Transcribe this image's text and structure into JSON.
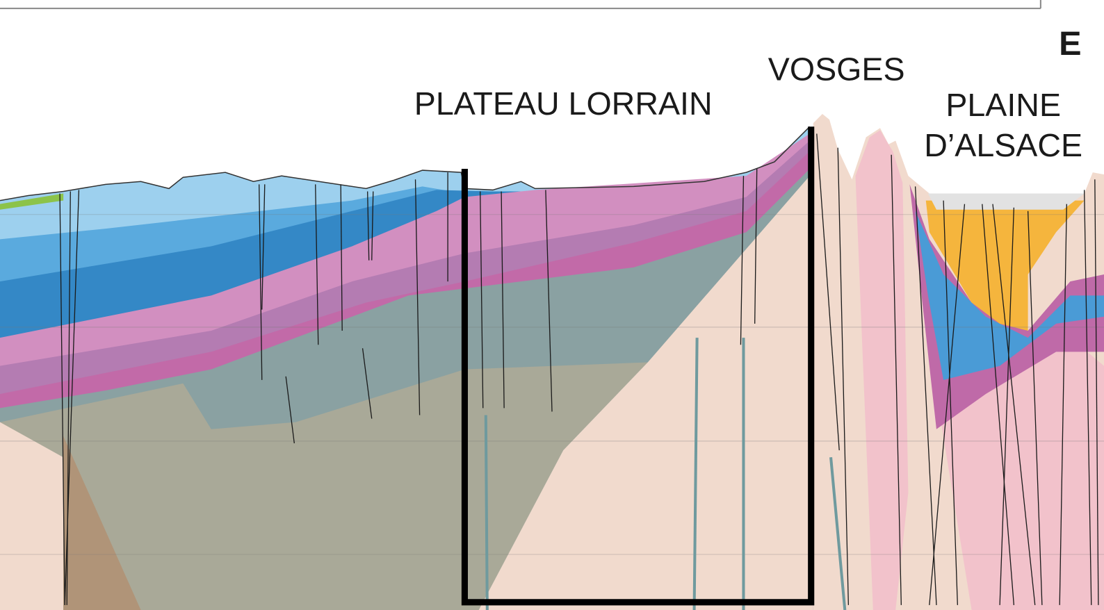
{
  "labels": {
    "corner": "E",
    "plateau": "PLATEAU LORRAIN",
    "vosges": "VOSGES",
    "plaine": [
      "PLAINE",
      "D’ALSACE"
    ]
  }
}
